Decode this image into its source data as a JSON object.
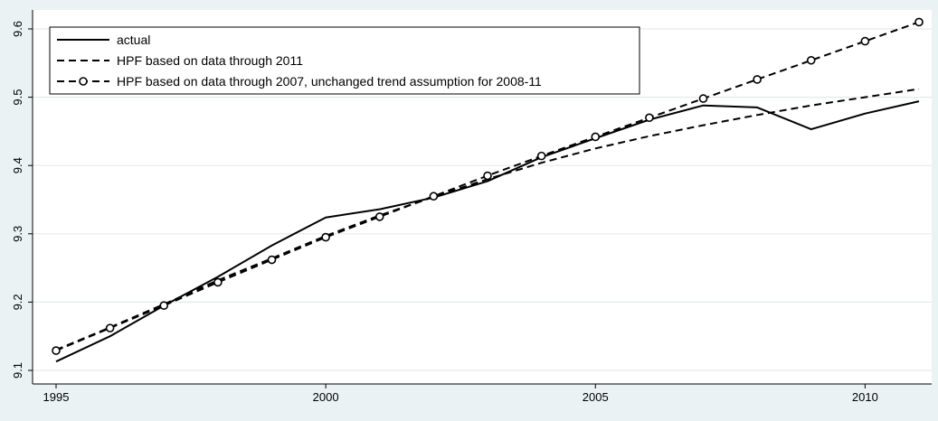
{
  "chart_data": {
    "type": "line",
    "title": "",
    "xlabel": "",
    "ylabel": "",
    "xlim": [
      1995,
      2011
    ],
    "ylim": [
      9.1,
      9.6
    ],
    "x_ticks": [
      1995,
      2000,
      2005,
      2010
    ],
    "x_tick_labels": [
      "1995",
      "2000",
      "2005",
      "2010"
    ],
    "y_ticks": [
      9.1,
      9.2,
      9.3,
      9.4,
      9.5,
      9.6
    ],
    "y_tick_labels": [
      "9.1",
      "9.2",
      "9.3",
      "9.4",
      "9.5",
      "9.6"
    ],
    "grid": true,
    "legend_position": "top-left",
    "x": [
      1995,
      1996,
      1997,
      1998,
      1999,
      2000,
      2001,
      2002,
      2003,
      2004,
      2005,
      2006,
      2007,
      2008,
      2009,
      2010,
      2011
    ],
    "series": [
      {
        "name": "actual",
        "style": "solid",
        "marker": "none",
        "values": [
          9.113,
          9.15,
          9.195,
          9.237,
          9.283,
          9.324,
          9.336,
          9.353,
          9.377,
          9.412,
          9.44,
          9.467,
          9.488,
          9.485,
          9.453,
          9.476,
          9.494
        ]
      },
      {
        "name": "HPF based on data through 2011",
        "style": "dashed",
        "marker": "none",
        "values": [
          9.13,
          9.163,
          9.197,
          9.232,
          9.264,
          9.297,
          9.327,
          9.354,
          9.38,
          9.404,
          9.425,
          9.443,
          9.459,
          9.474,
          9.488,
          9.5,
          9.512
        ]
      },
      {
        "name": "HPF based on data through 2007, unchanged trend assumption for 2008-11",
        "style": "dashed",
        "marker": "circle",
        "values": [
          9.129,
          9.162,
          9.195,
          9.229,
          9.262,
          9.295,
          9.325,
          9.355,
          9.385,
          9.414,
          9.442,
          9.47,
          9.498,
          9.526,
          9.554,
          9.582,
          9.61
        ]
      }
    ]
  }
}
